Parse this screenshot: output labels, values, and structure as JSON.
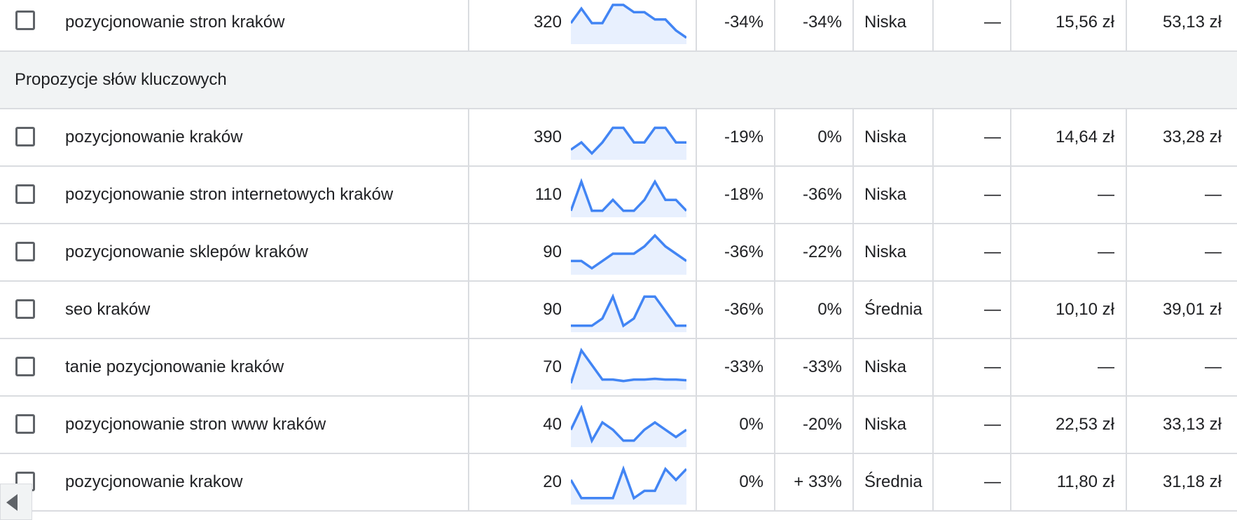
{
  "colors": {
    "trend_line": "#4285f4",
    "trend_fill": "#e8f0fe",
    "section_bg": "#f1f3f4",
    "divider": "#dadce0"
  },
  "top_row": {
    "keyword": "pozycjonowanie stron kraków",
    "volume": "320",
    "change_3m": "-34%",
    "change_yoy": "-34%",
    "competition": "Niska",
    "ad_share": "—",
    "bid_low": "15,56 zł",
    "bid_high": "53,13 zł",
    "trend": [
      5,
      9,
      5,
      5,
      10,
      10,
      8,
      8,
      6,
      6,
      3,
      1
    ]
  },
  "section": {
    "label": "Propozycje słów kluczowych"
  },
  "rows": [
    {
      "keyword": "pozycjonowanie kraków",
      "volume": "390",
      "change_3m": "-19%",
      "change_yoy": "0%",
      "competition": "Niska",
      "ad_share": "—",
      "bid_low": "14,64 zł",
      "bid_high": "33,28 zł",
      "trend": [
        2,
        4,
        1,
        4,
        8,
        8,
        4,
        4,
        8,
        8,
        4,
        4
      ]
    },
    {
      "keyword": "pozycjonowanie stron internetowych kraków",
      "volume": "110",
      "change_3m": "-18%",
      "change_yoy": "-36%",
      "competition": "Niska",
      "ad_share": "—",
      "bid_low": "—",
      "bid_high": "—",
      "trend": [
        1,
        9,
        1,
        1,
        4,
        1,
        1,
        4,
        9,
        4,
        4,
        1
      ]
    },
    {
      "keyword": "pozycjonowanie sklepów kraków",
      "volume": "90",
      "change_3m": "-36%",
      "change_yoy": "-22%",
      "competition": "Niska",
      "ad_share": "—",
      "bid_low": "—",
      "bid_high": "—",
      "trend": [
        3,
        3,
        1,
        3,
        5,
        5,
        5,
        7,
        10,
        7,
        5,
        3
      ]
    },
    {
      "keyword": "seo kraków",
      "volume": "90",
      "change_3m": "-36%",
      "change_yoy": "0%",
      "competition": "Średnia",
      "ad_share": "—",
      "bid_low": "10,10 zł",
      "bid_high": "39,01 zł",
      "trend": [
        1,
        1,
        1,
        3,
        9,
        1,
        3,
        9,
        9,
        5,
        1,
        1
      ]
    },
    {
      "keyword": "tanie pozycjonowanie kraków",
      "volume": "70",
      "change_3m": "-33%",
      "change_yoy": "-33%",
      "competition": "Niska",
      "ad_share": "—",
      "bid_low": "—",
      "bid_high": "—",
      "trend": [
        1,
        10,
        6,
        2,
        2,
        1.6,
        2,
        2,
        2.2,
        2,
        2,
        1.8
      ]
    },
    {
      "keyword": "pozycjonowanie stron www kraków",
      "volume": "40",
      "change_3m": "0%",
      "change_yoy": "-20%",
      "competition": "Niska",
      "ad_share": "—",
      "bid_low": "22,53 zł",
      "bid_high": "33,13 zł",
      "trend": [
        4,
        10,
        1,
        6,
        4,
        1,
        1,
        4,
        6,
        4,
        2,
        4
      ]
    },
    {
      "keyword": "pozycjonowanie krakow",
      "volume": "20",
      "change_3m": "0%",
      "change_yoy": "+ 33%",
      "competition": "Średnia",
      "ad_share": "—",
      "bid_low": "11,80 zł",
      "bid_high": "31,18 zł",
      "trend": [
        6,
        1,
        1,
        1,
        1,
        9,
        1,
        3,
        3,
        9,
        6,
        9
      ]
    }
  ]
}
